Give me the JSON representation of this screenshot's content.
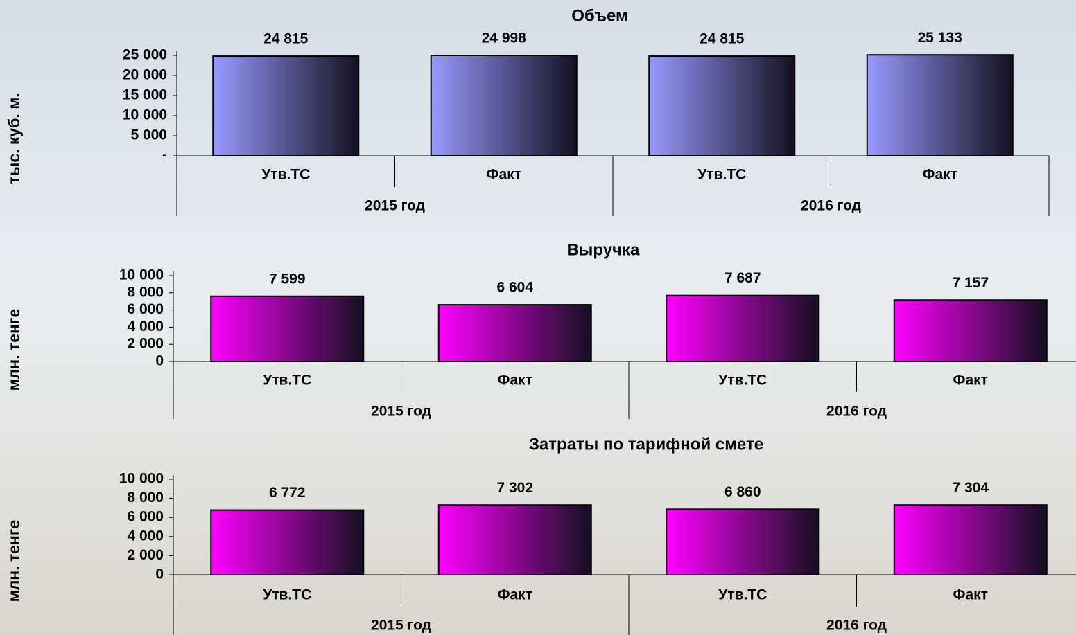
{
  "chart_data": [
    {
      "type": "bar",
      "title": "Объем",
      "y_label": "тыс. куб. м.",
      "categories": [
        "Утв.ТС",
        "Факт",
        "Утв.ТС",
        "Факт"
      ],
      "groups": [
        "2015 год",
        "2016 год"
      ],
      "values": [
        24815,
        24998,
        24815,
        25133
      ],
      "value_labels": [
        "24 815",
        "24 998",
        "24 815",
        "25 133"
      ],
      "color": "#9999ff",
      "ylim": [
        0,
        25000
      ],
      "yticks": [
        {
          "value": 0,
          "label": "-"
        },
        {
          "value": 5000,
          "label": "5 000"
        },
        {
          "value": 10000,
          "label": "10 000"
        },
        {
          "value": 15000,
          "label": "15 000"
        },
        {
          "value": 20000,
          "label": "20 000"
        },
        {
          "value": 25000,
          "label": "25 000"
        }
      ]
    },
    {
      "type": "bar",
      "title": "Выручка",
      "y_label": "млн. тенге",
      "categories": [
        "Утв.ТС",
        "Факт",
        "Утв.ТС",
        "Факт"
      ],
      "groups": [
        "2015 год",
        "2016 год"
      ],
      "values": [
        7599,
        6604,
        7687,
        7157
      ],
      "value_labels": [
        "7 599",
        "6 604",
        "7 687",
        "7 157"
      ],
      "color": "#ff00ff",
      "ylim": [
        0,
        10000
      ],
      "yticks": [
        0,
        {
          "value": 2000,
          "label": "2 000"
        },
        {
          "value": 4000,
          "label": "4 000"
        },
        {
          "value": 6000,
          "label": "6 000"
        },
        {
          "value": 8000,
          "label": "8 000"
        },
        {
          "value": 10000,
          "label": "10 000"
        }
      ]
    },
    {
      "type": "bar",
      "title": "Затраты по тарифной смете",
      "y_label": "млн. тенге",
      "categories": [
        "Утв.ТС",
        "Факт",
        "Утв.ТС",
        "Факт"
      ],
      "groups": [
        "2015 год",
        "2016 год"
      ],
      "values": [
        6772,
        7302,
        6860,
        7304
      ],
      "value_labels": [
        "6 772",
        "7 302",
        "6 860",
        "7 304"
      ],
      "color": "#ff00ff",
      "ylim": [
        0,
        10000
      ],
      "yticks": [
        0,
        {
          "value": 2000,
          "label": "2 000"
        },
        {
          "value": 4000,
          "label": "4 000"
        },
        {
          "value": 6000,
          "label": "6 000"
        },
        {
          "value": 8000,
          "label": "8 000"
        },
        {
          "value": 10000,
          "label": "10 000"
        }
      ]
    }
  ]
}
